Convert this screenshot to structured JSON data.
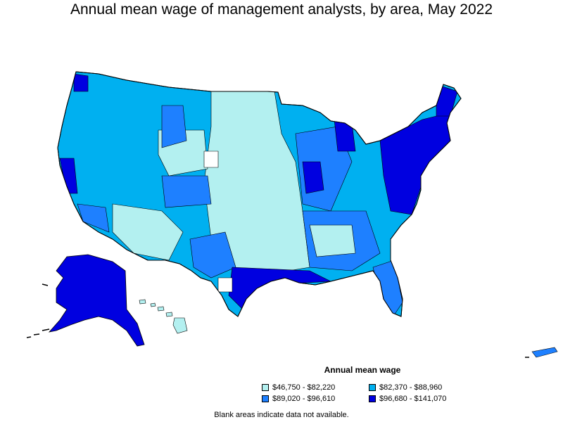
{
  "title": "Annual mean wage of management analysts, by area, May 2022",
  "legend": {
    "title": "Annual mean wage",
    "items": [
      {
        "label": "$46,750 - $82,220",
        "color": "#b3f0f0"
      },
      {
        "label": "$82,370 - $88,960",
        "color": "#00b0f0"
      },
      {
        "label": "$89,020 - $96,610",
        "color": "#1e80ff"
      },
      {
        "label": "$96,680 - $141,070",
        "color": "#0000e0"
      }
    ]
  },
  "footnote": "Blank areas indicate data not available.",
  "colors": {
    "class1": "#b3f0f0",
    "class2": "#00b0f0",
    "class3": "#1e80ff",
    "class4": "#0000e0",
    "border": "#000000"
  }
}
